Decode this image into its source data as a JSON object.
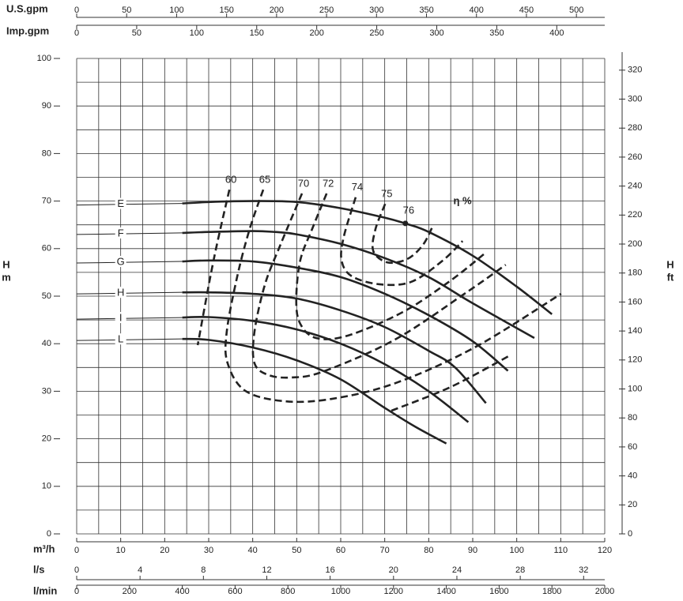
{
  "chart_data": {
    "type": "line",
    "xlabel": "m³/h",
    "xlim": [
      0,
      120
    ],
    "xticks": [
      0,
      10,
      20,
      30,
      40,
      50,
      60,
      70,
      80,
      90,
      100,
      110,
      120
    ],
    "xgrid": [
      0,
      5,
      10,
      15,
      20,
      25,
      30,
      35,
      40,
      45,
      50,
      55,
      60,
      65,
      70,
      75,
      80,
      85,
      90,
      95,
      100,
      105,
      110,
      115,
      120
    ],
    "ylabel": [
      "H",
      "m"
    ],
    "ylim": [
      0,
      100
    ],
    "yticks": [
      0,
      10,
      20,
      30,
      40,
      50,
      60,
      70,
      80,
      90,
      100
    ],
    "ygrid": [
      0,
      5,
      10,
      15,
      20,
      25,
      30,
      35,
      40,
      45,
      50,
      55,
      60,
      65,
      70,
      75,
      80,
      85,
      90,
      95,
      100
    ],
    "y2label": [
      "H",
      "ft"
    ],
    "y2lim": [
      0,
      328.08
    ],
    "y2ticks": [
      0,
      20,
      40,
      60,
      80,
      100,
      120,
      140,
      160,
      180,
      200,
      220,
      240,
      260,
      280,
      300,
      320
    ],
    "extra_x_axes": [
      {
        "label": "U.S.gpm",
        "position": "top",
        "lim": [
          0,
          528.34
        ],
        "ticks": [
          0,
          50,
          100,
          150,
          200,
          250,
          300,
          350,
          400,
          450,
          500
        ]
      },
      {
        "label": "Imp.gpm",
        "position": "top",
        "lim": [
          0,
          439.96
        ],
        "ticks": [
          0,
          50,
          100,
          150,
          200,
          250,
          300,
          350,
          400
        ]
      },
      {
        "label": "l/s",
        "position": "bottom",
        "lim": [
          0,
          33.333
        ],
        "ticks": [
          0,
          4,
          8,
          12,
          16,
          20,
          24,
          28,
          32
        ]
      },
      {
        "label": "l/min",
        "position": "bottom",
        "lim": [
          0,
          2000
        ],
        "ticks": [
          0,
          200,
          400,
          600,
          800,
          1000,
          1200,
          1400,
          1600,
          1800,
          2000
        ]
      }
    ],
    "annotation": "η %",
    "series": [
      {
        "name": "E",
        "color": "#222222",
        "dash": false,
        "x": [
          24,
          30,
          40,
          50,
          60,
          70,
          75,
          80,
          90,
          100,
          108
        ],
        "values": [
          69.5,
          69.8,
          70,
          69.8,
          68.5,
          66.5,
          65.2,
          63.5,
          58.5,
          52,
          46.2
        ]
      },
      {
        "name": "F",
        "color": "#222222",
        "dash": false,
        "x": [
          24,
          30,
          40,
          45,
          50,
          60,
          70,
          80,
          90,
          104
        ],
        "values": [
          63.3,
          63.5,
          63.7,
          63.5,
          63,
          61,
          58,
          54,
          48.5,
          41.2
        ]
      },
      {
        "name": "G",
        "color": "#222222",
        "dash": false,
        "x": [
          24,
          30,
          40,
          50,
          60,
          70,
          80,
          90,
          98
        ],
        "values": [
          57.3,
          57.5,
          57.3,
          56,
          54,
          50.5,
          46,
          40.5,
          34.3
        ]
      },
      {
        "name": "H",
        "color": "#222222",
        "dash": false,
        "x": [
          24,
          30,
          40,
          50,
          60,
          70,
          80,
          86,
          93
        ],
        "values": [
          50.8,
          50.8,
          50.5,
          49.5,
          47,
          43.5,
          38.5,
          35,
          27.5
        ]
      },
      {
        "name": "I",
        "color": "#222222",
        "dash": false,
        "x": [
          24,
          30,
          40,
          50,
          60,
          70,
          80,
          89
        ],
        "values": [
          45.5,
          45.6,
          44.8,
          43,
          40,
          35.7,
          30,
          23.5
        ]
      },
      {
        "name": "L",
        "color": "#222222",
        "dash": false,
        "x": [
          24,
          30,
          40,
          50,
          60,
          70,
          77,
          84
        ],
        "values": [
          41,
          40.8,
          39.2,
          36.5,
          32.5,
          26.5,
          22.5,
          19
        ]
      },
      {
        "name": "60",
        "color": "#222222",
        "dash": true,
        "x": [
          34.7,
          31.1,
          27.5,
          null,
          71.5,
          85,
          98.4
        ],
        "values": [
          72.4,
          57.5,
          39.7,
          null,
          25.9,
          30.9,
          37.5
        ]
      },
      {
        "name": "65",
        "color": "#222222",
        "dash": true,
        "x": [
          42.4,
          39.3,
          36.5,
          34.1,
          34.3,
          38.3,
          47.2,
          58,
          72.4,
          90.4,
          110.1
        ],
        "values": [
          72.4,
          64.1,
          54.2,
          42.5,
          35.9,
          30.1,
          27.9,
          28.4,
          31.7,
          39.2,
          50.5
        ]
      },
      {
        "name": "70",
        "color": "#222222",
        "dash": true,
        "x": [
          51.2,
          46.3,
          42.8,
          40.4,
          40.4,
          43.6,
          49,
          56.2,
          72.4,
          88.6,
          97.5
        ],
        "values": [
          71.6,
          60.8,
          52.5,
          42.5,
          35.9,
          33.4,
          32.9,
          34.2,
          40.9,
          50.8,
          56.6
        ]
      },
      {
        "name": "72",
        "color": "#222222",
        "dash": true,
        "x": [
          56.8,
          53.5,
          50.8,
          49.9,
          50.8,
          54.4,
          61.6,
          74.2,
          85,
          92.5
        ],
        "values": [
          71.6,
          64.1,
          57.5,
          49.2,
          44.2,
          41.2,
          41.7,
          46.7,
          53.3,
          58.8
        ]
      },
      {
        "name": "74",
        "color": "#222222",
        "dash": true,
        "x": [
          63.4,
          60.7,
          60.2,
          62.5,
          68.8,
          76,
          83.2,
          87.7
        ],
        "values": [
          70.8,
          62.5,
          57.5,
          54.2,
          52.5,
          53,
          57.5,
          61.6
        ]
      },
      {
        "name": "75",
        "color": "#222222",
        "dash": true,
        "x": [
          70.1,
          67.9,
          67.4,
          70.6,
          75.1,
          78.7,
          81
        ],
        "values": [
          69.4,
          64.1,
          59.5,
          57.1,
          57.8,
          60.8,
          64.9
        ]
      },
      {
        "name": "76",
        "color": "#222222",
        "marker": true,
        "x": [
          74.7
        ],
        "values": [
          65.3
        ]
      }
    ]
  }
}
